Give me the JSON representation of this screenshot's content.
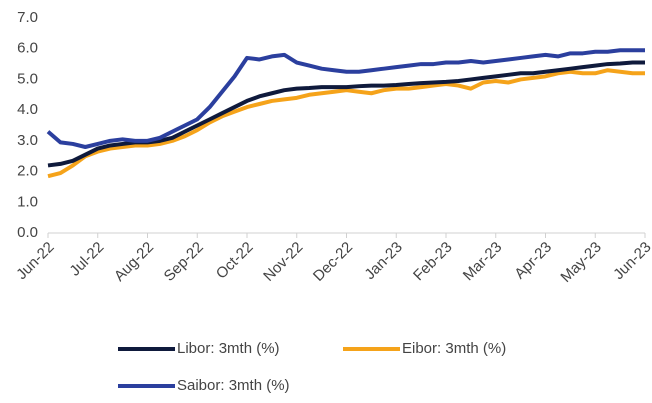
{
  "chart_data": {
    "type": "line",
    "categories": [
      "Jun-22",
      null,
      null,
      null,
      "Jul-22",
      null,
      null,
      null,
      "Aug-22",
      null,
      null,
      null,
      "Sep-22",
      null,
      null,
      null,
      "Oct-22",
      null,
      null,
      null,
      "Nov-22",
      null,
      null,
      null,
      "Dec-22",
      null,
      null,
      null,
      "Jan-23",
      null,
      null,
      null,
      "Feb-23",
      null,
      null,
      null,
      "Mar-23",
      null,
      null,
      null,
      "Apr-23",
      null,
      null,
      null,
      "May-23",
      null,
      null,
      null,
      "Jun-23"
    ],
    "series": [
      {
        "name": "Libor: 3mth (%)",
        "color": "#0f1a3c",
        "values": [
          2.2,
          2.25,
          2.35,
          2.55,
          2.75,
          2.85,
          2.9,
          2.95,
          2.95,
          3.0,
          3.1,
          3.3,
          3.5,
          3.7,
          3.9,
          4.1,
          4.3,
          4.45,
          4.55,
          4.65,
          4.7,
          4.72,
          4.75,
          4.75,
          4.75,
          4.78,
          4.8,
          4.8,
          4.82,
          4.85,
          4.88,
          4.9,
          4.92,
          4.95,
          5.0,
          5.05,
          5.1,
          5.15,
          5.2,
          5.2,
          5.25,
          5.3,
          5.35,
          5.4,
          5.45,
          5.5,
          5.52,
          5.55,
          5.55
        ]
      },
      {
        "name": "Eibor: 3mth (%)",
        "color": "#f5a31a",
        "values": [
          1.85,
          1.95,
          2.2,
          2.5,
          2.65,
          2.75,
          2.8,
          2.85,
          2.85,
          2.9,
          3.0,
          3.15,
          3.35,
          3.6,
          3.8,
          3.95,
          4.1,
          4.2,
          4.3,
          4.35,
          4.4,
          4.5,
          4.55,
          4.6,
          4.65,
          4.6,
          4.55,
          4.65,
          4.7,
          4.7,
          4.75,
          4.8,
          4.85,
          4.8,
          4.7,
          4.9,
          4.95,
          4.9,
          5.0,
          5.05,
          5.1,
          5.2,
          5.25,
          5.2,
          5.2,
          5.3,
          5.25,
          5.2,
          5.2
        ]
      },
      {
        "name": "Saibor: 3mth (%)",
        "color": "#2b3f9e",
        "values": [
          3.3,
          2.95,
          2.9,
          2.8,
          2.9,
          3.0,
          3.05,
          3.0,
          3.0,
          3.1,
          3.3,
          3.5,
          3.7,
          4.1,
          4.6,
          5.1,
          5.7,
          5.65,
          5.75,
          5.8,
          5.55,
          5.45,
          5.35,
          5.3,
          5.25,
          5.25,
          5.3,
          5.35,
          5.4,
          5.45,
          5.5,
          5.5,
          5.55,
          5.55,
          5.6,
          5.55,
          5.6,
          5.65,
          5.7,
          5.75,
          5.8,
          5.75,
          5.85,
          5.85,
          5.9,
          5.9,
          5.95,
          5.95,
          5.95
        ]
      }
    ],
    "ylim": [
      0,
      7
    ],
    "yticks": [
      {
        "value": 0,
        "label": "0.0"
      },
      {
        "value": 1,
        "label": "1.0"
      },
      {
        "value": 2,
        "label": "2.0"
      },
      {
        "value": 3,
        "label": "3.0"
      },
      {
        "value": 4,
        "label": "4.0"
      },
      {
        "value": 5,
        "label": "5.0"
      },
      {
        "value": 6,
        "label": "6.0"
      },
      {
        "value": 7,
        "label": "7.0"
      }
    ],
    "grid": false,
    "legend": "bottom"
  }
}
